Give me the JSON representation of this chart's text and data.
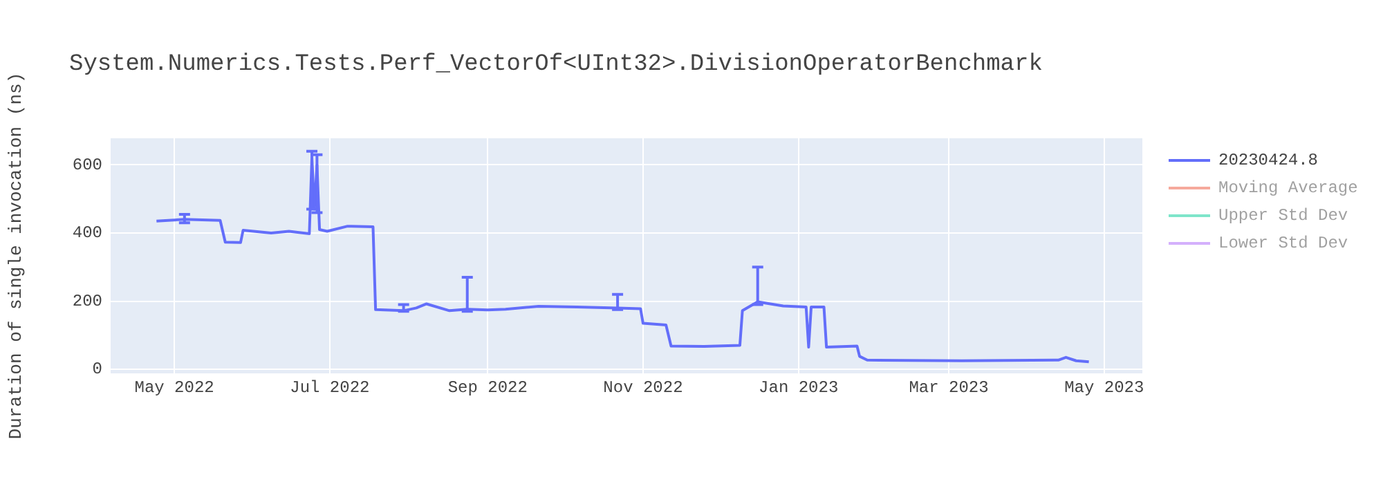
{
  "chart_data": {
    "type": "line",
    "title": "System.Numerics.Tests.Perf_VectorOf<UInt32>.DivisionOperatorBenchmark",
    "ylabel": "Duration of single invocation (ns)",
    "x": [
      "2022-04-24",
      "2022-05-05",
      "2022-05-19",
      "2022-05-21",
      "2022-05-27",
      "2022-05-28",
      "2022-06-08",
      "2022-06-15",
      "2022-06-23",
      "2022-06-24",
      "2022-06-25",
      "2022-06-26",
      "2022-06-27",
      "2022-06-30",
      "2022-07-08",
      "2022-07-18",
      "2022-07-19",
      "2022-07-30",
      "2022-08-04",
      "2022-08-08",
      "2022-08-17",
      "2022-08-24",
      "2022-09-01",
      "2022-09-08",
      "2022-09-21",
      "2022-10-06",
      "2022-10-22",
      "2022-10-31",
      "2022-11-01",
      "2022-11-10",
      "2022-11-12",
      "2022-11-25",
      "2022-12-09",
      "2022-12-10",
      "2022-12-16",
      "2022-12-26",
      "2023-01-04",
      "2023-01-05",
      "2023-01-06",
      "2023-01-11",
      "2023-01-12",
      "2023-01-24",
      "2023-01-25",
      "2023-01-28",
      "2023-03-06",
      "2023-04-13",
      "2023-04-16",
      "2023-04-20",
      "2023-04-25"
    ],
    "series": [
      {
        "name": "20230424.8",
        "color": "#636efa",
        "values": [
          435,
          440,
          437,
          373,
          372,
          408,
          400,
          405,
          398,
          620,
          470,
          600,
          410,
          405,
          420,
          418,
          175,
          172,
          180,
          192,
          172,
          176,
          174,
          176,
          185,
          183,
          180,
          178,
          135,
          130,
          68,
          67,
          70,
          172,
          198,
          186,
          183,
          65,
          183,
          183,
          65,
          68,
          38,
          27,
          25,
          27,
          35,
          25,
          22
        ],
        "errors": [
          null,
          [
            430,
            455
          ],
          null,
          null,
          null,
          null,
          null,
          null,
          null,
          [
            470,
            640
          ],
          null,
          [
            460,
            630
          ],
          null,
          null,
          null,
          null,
          null,
          [
            170,
            190
          ],
          null,
          null,
          null,
          [
            170,
            270
          ],
          null,
          null,
          null,
          null,
          [
            175,
            220
          ],
          null,
          null,
          null,
          null,
          null,
          null,
          null,
          [
            190,
            300
          ],
          null,
          null,
          null,
          null,
          null,
          null,
          null,
          null,
          null,
          null,
          null,
          null,
          null,
          null
        ]
      },
      {
        "name": "Moving Average",
        "color": "#ef553b",
        "values": [
          null,
          null,
          null,
          null,
          null,
          null,
          null,
          null,
          null,
          null,
          null,
          null,
          null,
          null,
          null,
          null,
          null,
          null,
          null,
          null,
          null,
          null,
          null,
          null,
          null,
          null,
          null,
          null,
          null,
          null,
          null,
          null,
          null,
          null,
          null,
          null,
          null,
          null,
          null,
          null,
          null,
          null,
          null,
          null,
          null,
          null,
          null,
          null,
          null
        ]
      },
      {
        "name": "Upper Std Dev",
        "color": "#00cc96",
        "values": [
          null,
          null,
          null,
          null,
          null,
          null,
          null,
          null,
          null,
          null,
          null,
          null,
          null,
          null,
          null,
          null,
          null,
          null,
          null,
          null,
          null,
          null,
          null,
          null,
          null,
          null,
          null,
          null,
          null,
          null,
          null,
          null,
          null,
          null,
          null,
          null,
          null,
          null,
          null,
          null,
          null,
          null,
          null,
          null,
          null,
          null,
          null,
          null,
          null
        ]
      },
      {
        "name": "Lower Std Dev",
        "color": "#ab63fa",
        "values": [
          null,
          null,
          null,
          null,
          null,
          null,
          null,
          null,
          null,
          null,
          null,
          null,
          null,
          null,
          null,
          null,
          null,
          null,
          null,
          null,
          null,
          null,
          null,
          null,
          null,
          null,
          null,
          null,
          null,
          null,
          null,
          null,
          null,
          null,
          null,
          null,
          null,
          null,
          null,
          null,
          null,
          null,
          null,
          null,
          null,
          null,
          null,
          null,
          null
        ]
      }
    ],
    "xlim": [
      "2022-04-06",
      "2023-05-16"
    ],
    "xticks": [
      {
        "value": "2022-05-01",
        "label": "May 2022"
      },
      {
        "value": "2022-07-01",
        "label": "Jul 2022"
      },
      {
        "value": "2022-09-01",
        "label": "Sep 2022"
      },
      {
        "value": "2022-11-01",
        "label": "Nov 2022"
      },
      {
        "value": "2023-01-01",
        "label": "Jan 2023"
      },
      {
        "value": "2023-03-01",
        "label": "Mar 2023"
      },
      {
        "value": "2023-05-01",
        "label": "May 2023"
      }
    ],
    "ylim": [
      -12,
      678
    ],
    "yticks": [
      0,
      200,
      400,
      600
    ],
    "grid": true,
    "legend": "right",
    "line_style": "solid"
  }
}
